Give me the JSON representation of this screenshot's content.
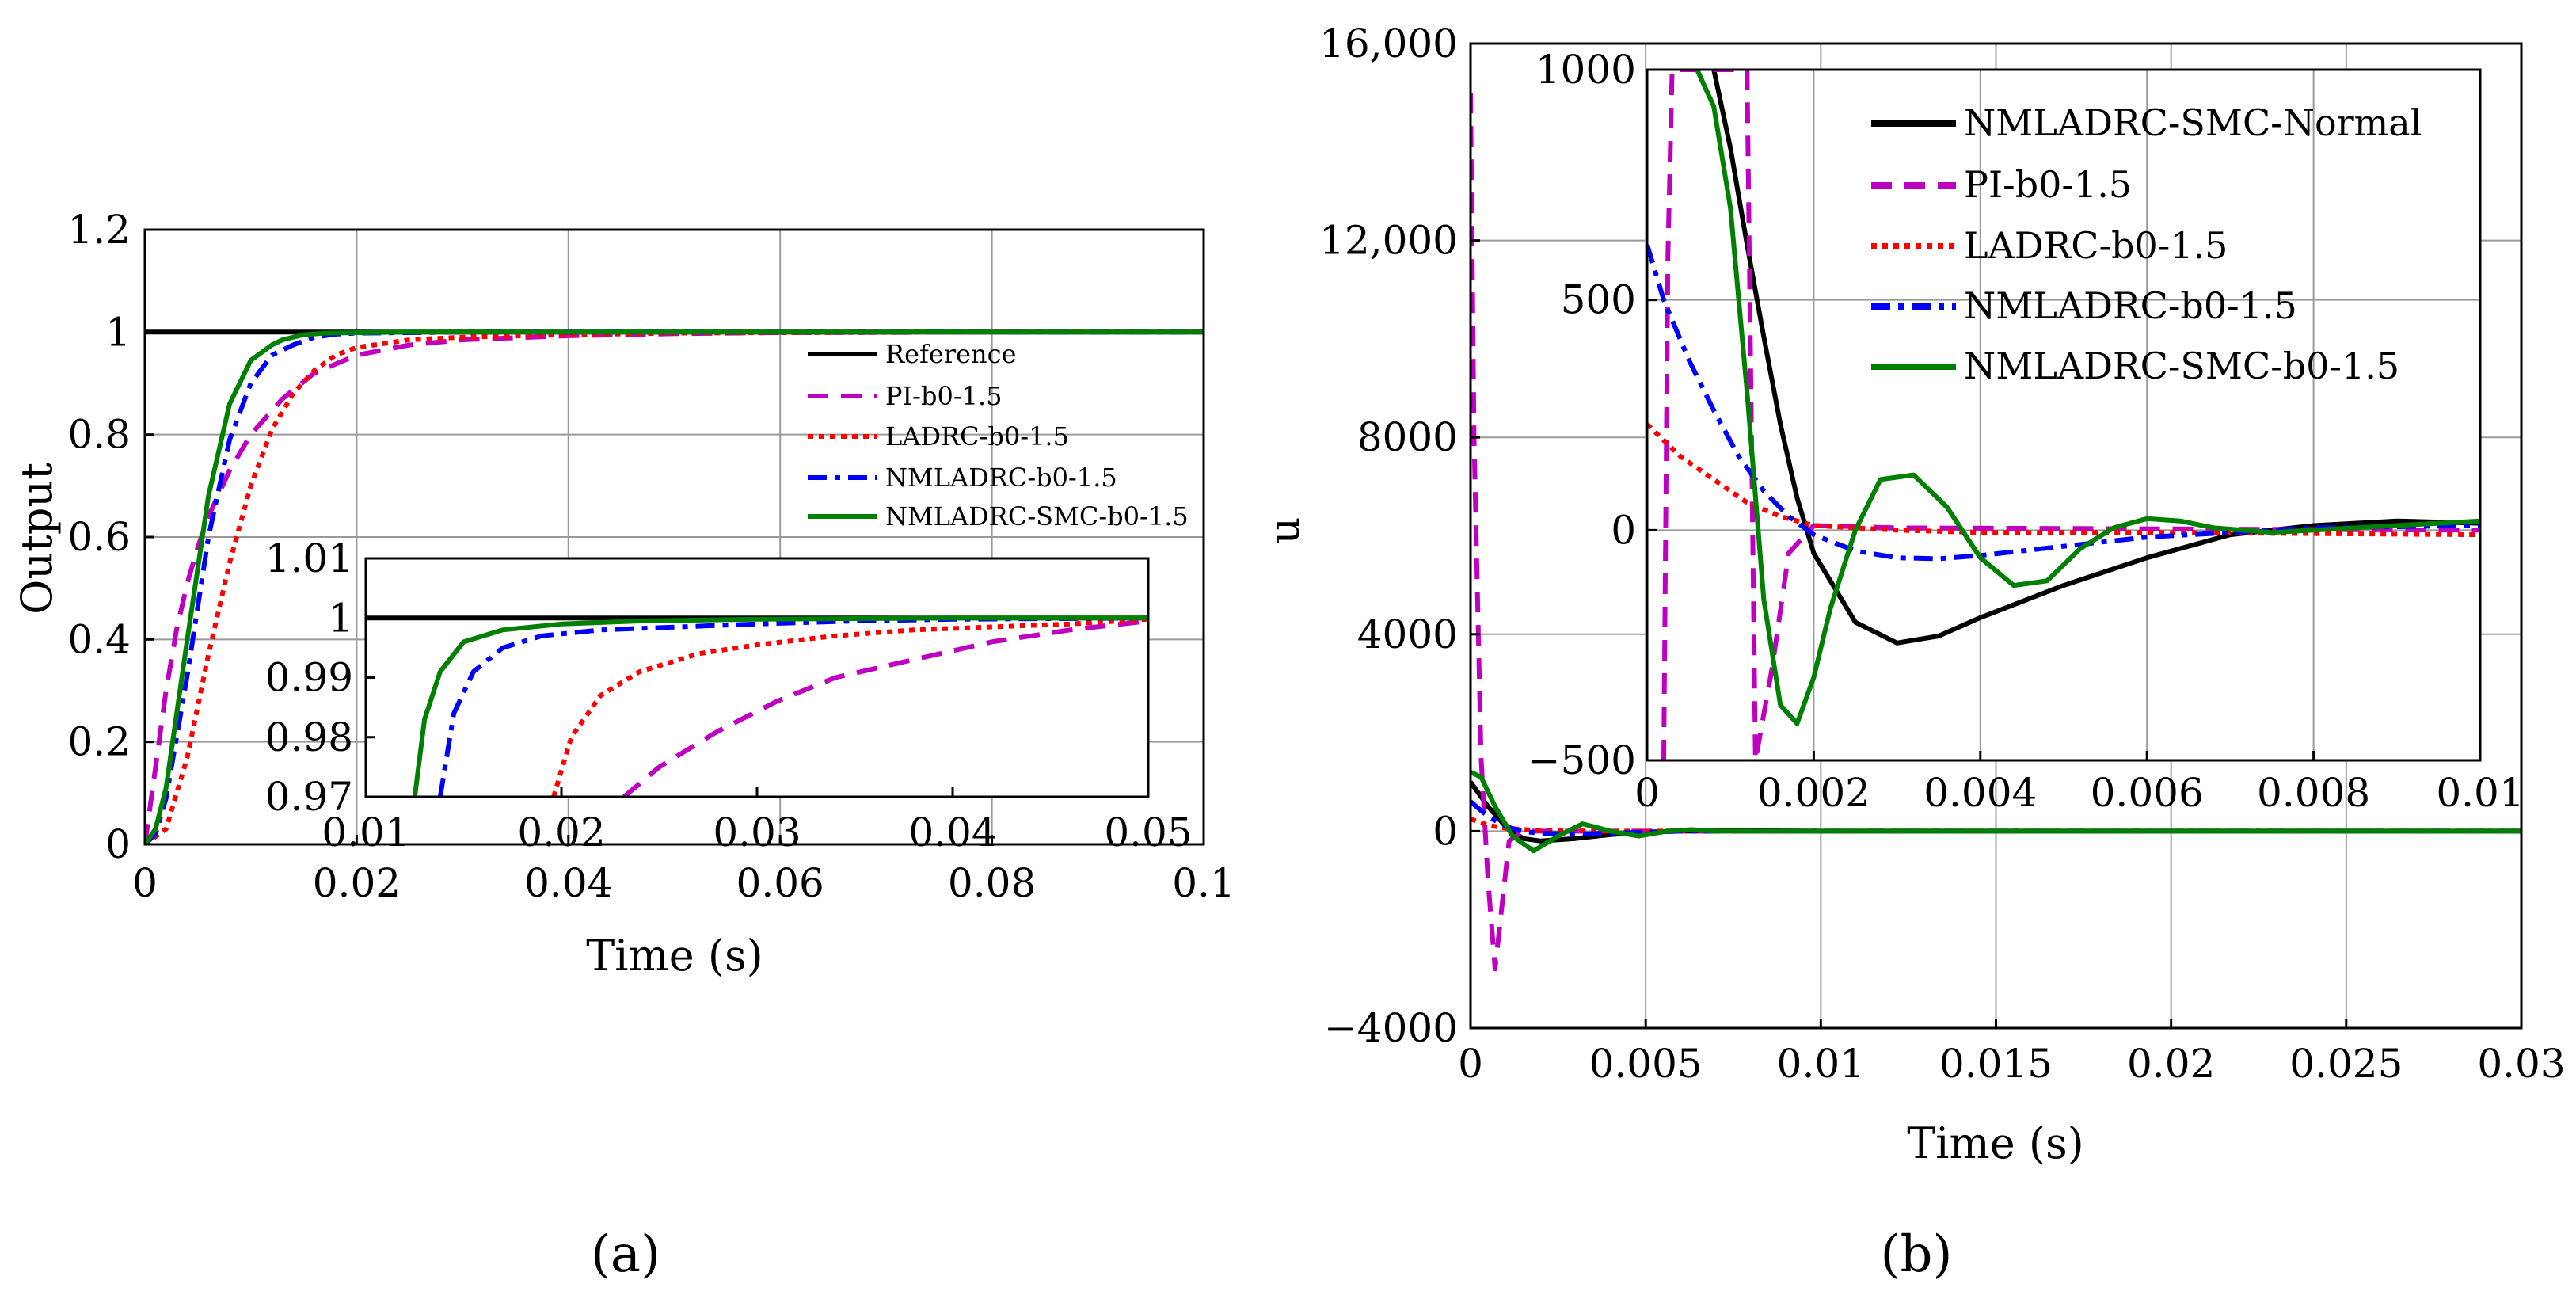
{
  "colors": {
    "Reference": "#000000",
    "NMLADRC-SMC-Normal": "#000000",
    "PI-b0-1.5": "#c000c0",
    "LADRC-b0-1.5": "#ff0000",
    "NMLADRC-b0-1.5": "#0000ff",
    "NMLADRC-SMC-b0-1.5": "#008000"
  },
  "panels": {
    "a": {
      "label": "(a)"
    },
    "b": {
      "label": "(b)"
    }
  },
  "chart_data": [
    {
      "id": "a-main",
      "type": "line",
      "xlabel": "Time (s)",
      "ylabel": "Output",
      "xlim": [
        0,
        0.1
      ],
      "ylim": [
        0,
        1.2
      ],
      "xticks": [
        0,
        0.02,
        0.04,
        0.06,
        0.08,
        0.1
      ],
      "xtick_labels": [
        "0",
        "0.02",
        "0.04",
        "0.06",
        "0.08",
        "0.1"
      ],
      "yticks": [
        0,
        0.2,
        0.4,
        0.6,
        0.8,
        1,
        1.2
      ],
      "ytick_labels": [
        "0",
        "0.2",
        "0.4",
        "0.6",
        "0.8",
        "1",
        "1.2"
      ],
      "grid": true,
      "legend": "center-right",
      "series": [
        {
          "name": "Reference",
          "style": "solid",
          "x": [
            0,
            0.1
          ],
          "y": [
            1,
            1
          ]
        },
        {
          "name": "PI-b0-1.5",
          "style": "dashed",
          "x": [
            0,
            0.001,
            0.002,
            0.003,
            0.004,
            0.005,
            0.006,
            0.008,
            0.01,
            0.013,
            0.016,
            0.02,
            0.025,
            0.03,
            0.04,
            0.05,
            0.06,
            0.08,
            0.1
          ],
          "y": [
            0,
            0.15,
            0.3,
            0.42,
            0.51,
            0.58,
            0.64,
            0.73,
            0.8,
            0.87,
            0.92,
            0.955,
            0.975,
            0.985,
            0.993,
            0.997,
            0.999,
            1.0,
            1.0
          ]
        },
        {
          "name": "LADRC-b0-1.5",
          "style": "dotted",
          "x": [
            0,
            0.002,
            0.004,
            0.006,
            0.008,
            0.01,
            0.012,
            0.014,
            0.016,
            0.018,
            0.02,
            0.025,
            0.03,
            0.04,
            0.05,
            0.06,
            0.08,
            0.1
          ],
          "y": [
            0,
            0.03,
            0.17,
            0.37,
            0.55,
            0.7,
            0.81,
            0.88,
            0.925,
            0.955,
            0.97,
            0.985,
            0.99,
            0.995,
            0.998,
            0.999,
            1.0,
            1.0
          ]
        },
        {
          "name": "NMLADRC-b0-1.5",
          "style": "dashdot",
          "x": [
            0,
            0.001,
            0.002,
            0.004,
            0.006,
            0.008,
            0.01,
            0.012,
            0.014,
            0.016,
            0.018,
            0.02,
            0.025,
            0.03,
            0.04,
            0.06,
            0.08,
            0.1
          ],
          "y": [
            0,
            0.02,
            0.09,
            0.33,
            0.6,
            0.79,
            0.9,
            0.955,
            0.975,
            0.99,
            0.996,
            0.998,
            0.999,
            1.0,
            1.0,
            1.0,
            1.0,
            1.0
          ]
        },
        {
          "name": "NMLADRC-SMC-b0-1.5",
          "style": "solid",
          "x": [
            0,
            0.001,
            0.002,
            0.004,
            0.006,
            0.008,
            0.01,
            0.012,
            0.013,
            0.015,
            0.017,
            0.02,
            0.025,
            0.03,
            0.04,
            0.06,
            0.08,
            0.1
          ],
          "y": [
            0,
            0.03,
            0.11,
            0.4,
            0.68,
            0.86,
            0.945,
            0.975,
            0.985,
            0.995,
            0.998,
            0.999,
            1.0,
            1.0,
            1.0,
            1.0,
            1.0,
            1.0
          ]
        }
      ]
    },
    {
      "id": "a-inset",
      "type": "line",
      "xlim": [
        0.01,
        0.05
      ],
      "ylim": [
        0.97,
        1.01
      ],
      "xticks": [
        0.01,
        0.02,
        0.03,
        0.04,
        0.05
      ],
      "xtick_labels": [
        "0.01",
        "0.02",
        "0.03",
        "0.04",
        "0.05"
      ],
      "yticks": [
        0.97,
        0.98,
        0.99,
        1,
        1.01
      ],
      "ytick_labels": [
        "0.97",
        "0.98",
        "0.99",
        "1",
        "1.01"
      ],
      "grid": false,
      "series": [
        {
          "name": "Reference",
          "style": "solid",
          "x": [
            0.01,
            0.05
          ],
          "y": [
            1,
            1
          ]
        },
        {
          "name": "PI-b0-1.5",
          "style": "dashed",
          "x": [
            0.0232,
            0.025,
            0.028,
            0.031,
            0.034,
            0.038,
            0.042,
            0.046,
            0.05
          ],
          "y": [
            0.97,
            0.975,
            0.981,
            0.986,
            0.99,
            0.993,
            0.996,
            0.998,
            0.9995
          ]
        },
        {
          "name": "LADRC-b0-1.5",
          "style": "dotted",
          "x": [
            0.0196,
            0.0205,
            0.022,
            0.024,
            0.027,
            0.03,
            0.034,
            0.038,
            0.042,
            0.046,
            0.05
          ],
          "y": [
            0.97,
            0.98,
            0.987,
            0.991,
            0.994,
            0.9955,
            0.997,
            0.998,
            0.9985,
            0.999,
            0.9998
          ]
        },
        {
          "name": "NMLADRC-b0-1.5",
          "style": "dashdot",
          "x": [
            0.0138,
            0.0145,
            0.0155,
            0.017,
            0.019,
            0.022,
            0.026,
            0.03,
            0.035,
            0.04,
            0.05
          ],
          "y": [
            0.97,
            0.984,
            0.991,
            0.995,
            0.997,
            0.998,
            0.9985,
            0.999,
            0.9995,
            0.9998,
            1.0
          ]
        },
        {
          "name": "NMLADRC-SMC-b0-1.5",
          "style": "solid",
          "x": [
            0.0125,
            0.013,
            0.0138,
            0.015,
            0.017,
            0.02,
            0.024,
            0.03,
            0.04,
            0.05
          ],
          "y": [
            0.97,
            0.983,
            0.991,
            0.996,
            0.998,
            0.999,
            0.9995,
            0.9998,
            1.0,
            1.0
          ]
        }
      ]
    },
    {
      "id": "b-main",
      "type": "line",
      "xlabel": "Time (s)",
      "ylabel": "u",
      "xlim": [
        0,
        0.03
      ],
      "ylim": [
        -4000,
        16000
      ],
      "xticks": [
        0,
        0.005,
        0.01,
        0.015,
        0.02,
        0.025,
        0.03
      ],
      "xtick_labels": [
        "0",
        "0.005",
        "0.01",
        "0.015",
        "0.02",
        "0.025",
        "0.03"
      ],
      "yticks": [
        -4000,
        0,
        4000,
        8000,
        12000,
        16000
      ],
      "ytick_labels": [
        "−4000",
        "0",
        "4000",
        "8000",
        "12,000",
        "16,000"
      ],
      "grid": true,
      "series": [
        {
          "name": "NMLADRC-SMC-Normal",
          "style": "solid",
          "x": [
            0,
            0.0005,
            0.001,
            0.0015,
            0.002,
            0.003,
            0.004,
            0.005,
            0.006,
            0.008,
            0.01,
            0.03
          ],
          "y": [
            1000,
            500,
            100,
            -150,
            -200,
            -150,
            -70,
            -20,
            0,
            10,
            0,
            0
          ]
        },
        {
          "name": "PI-b0-1.5",
          "style": "dashed",
          "x": [
            0,
            0.0001,
            0.0003,
            0.0005,
            0.0007,
            0.0009,
            0.0011,
            0.0015,
            0.003,
            0.03
          ],
          "y": [
            15000,
            8000,
            1500,
            -1000,
            -2800,
            -1500,
            -200,
            0,
            0,
            0
          ]
        },
        {
          "name": "LADRC-b0-1.5",
          "style": "dotted",
          "x": [
            0,
            0.0005,
            0.001,
            0.002,
            0.004,
            0.03
          ],
          "y": [
            250,
            120,
            60,
            10,
            0,
            0
          ]
        },
        {
          "name": "NMLADRC-b0-1.5",
          "style": "dashdot",
          "x": [
            0,
            0.0005,
            0.001,
            0.0015,
            0.002,
            0.003,
            0.004,
            0.006,
            0.03
          ],
          "y": [
            600,
            300,
            100,
            -10,
            -40,
            -60,
            -40,
            0,
            0
          ]
        },
        {
          "name": "NMLADRC-SMC-b0-1.5",
          "style": "solid",
          "x": [
            0,
            0.0003,
            0.0007,
            0.0012,
            0.0018,
            0.0025,
            0.0032,
            0.004,
            0.0048,
            0.0056,
            0.0063,
            0.007,
            0.009,
            0.03
          ],
          "y": [
            1200,
            1100,
            500,
            -100,
            -400,
            -100,
            150,
            0,
            -100,
            0,
            30,
            0,
            0,
            0
          ]
        }
      ]
    },
    {
      "id": "b-inset",
      "type": "line",
      "xlim": [
        0,
        0.01
      ],
      "ylim": [
        -500,
        1000
      ],
      "xticks": [
        0,
        0.002,
        0.004,
        0.006,
        0.008,
        0.01
      ],
      "xtick_labels": [
        "0",
        "0.002",
        "0.004",
        "0.006",
        "0.008",
        "0.01"
      ],
      "yticks": [
        -500,
        0,
        500,
        1000
      ],
      "ytick_labels": [
        "−500",
        "0",
        "500",
        "1000"
      ],
      "grid": true,
      "legend": "top-right",
      "series": [
        {
          "name": "NMLADRC-SMC-Normal",
          "style": "solid",
          "x": [
            0.0008,
            0.001,
            0.0012,
            0.0014,
            0.0016,
            0.0018,
            0.002,
            0.0025,
            0.003,
            0.0035,
            0.004,
            0.005,
            0.006,
            0.007,
            0.008,
            0.009,
            0.01
          ],
          "y": [
            1000,
            830,
            620,
            420,
            230,
            70,
            -50,
            -200,
            -245,
            -230,
            -190,
            -120,
            -60,
            -10,
            10,
            20,
            15
          ]
        },
        {
          "name": "PI-b0-1.5",
          "style": "dashed",
          "x": [
            0.0002,
            0.00025,
            0.0003,
            0.0004,
            0.0005,
            0.0007,
            0.0009,
            0.001,
            0.0011,
            0.0012,
            0.0013,
            0.0015,
            0.0017,
            0.002,
            0.003,
            0.01
          ],
          "y": [
            -500,
            600,
            1000,
            1000,
            1000,
            1000,
            1000,
            1000,
            1000,
            1000,
            -500,
            -300,
            -50,
            10,
            5,
            0
          ]
        },
        {
          "name": "LADRC-b0-1.5",
          "style": "dotted",
          "x": [
            0,
            0.0004,
            0.0008,
            0.0012,
            0.0016,
            0.002,
            0.003,
            0.004,
            0.006,
            0.01
          ],
          "y": [
            230,
            160,
            110,
            60,
            30,
            10,
            0,
            -5,
            -5,
            -10
          ]
        },
        {
          "name": "NMLADRC-b0-1.5",
          "style": "dashdot",
          "x": [
            0,
            0.0002,
            0.0005,
            0.0008,
            0.0011,
            0.0014,
            0.0017,
            0.002,
            0.0025,
            0.003,
            0.0035,
            0.004,
            0.005,
            0.006,
            0.008,
            0.01
          ],
          "y": [
            620,
            500,
            370,
            260,
            160,
            85,
            30,
            -10,
            -45,
            -60,
            -62,
            -55,
            -35,
            -15,
            5,
            10
          ]
        },
        {
          "name": "NMLADRC-SMC-b0-1.5",
          "style": "solid",
          "x": [
            0.0006,
            0.0008,
            0.001,
            0.0012,
            0.0014,
            0.0016,
            0.0018,
            0.002,
            0.0022,
            0.0025,
            0.0028,
            0.0032,
            0.0036,
            0.004,
            0.0044,
            0.0048,
            0.0052,
            0.0056,
            0.006,
            0.0064,
            0.0068,
            0.0075,
            0.008,
            0.009,
            0.01
          ],
          "y": [
            1000,
            920,
            700,
            300,
            -150,
            -380,
            -420,
            -320,
            -170,
            0,
            110,
            120,
            50,
            -60,
            -120,
            -110,
            -40,
            5,
            25,
            20,
            5,
            -5,
            0,
            10,
            20
          ]
        }
      ]
    }
  ]
}
